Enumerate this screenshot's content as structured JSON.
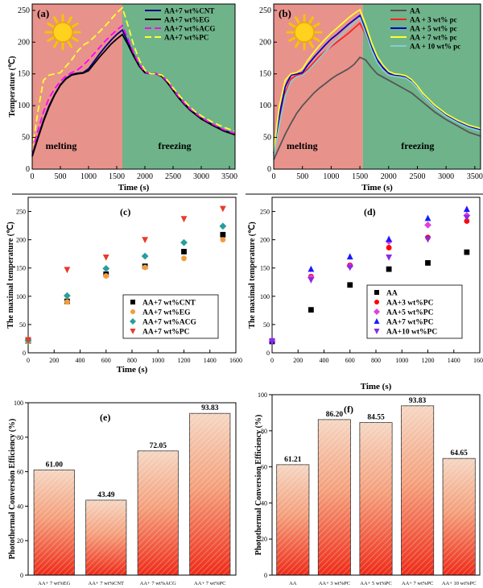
{
  "chart_data": [
    {
      "panel": "(a)",
      "type": "line",
      "xlabel": "Time (s)",
      "ylabel": "Temperature (℃)",
      "xlim": [
        0,
        3600
      ],
      "ylim": [
        0,
        260
      ],
      "xticks": [
        0,
        500,
        1000,
        1500,
        2000,
        2500,
        3000,
        3500
      ],
      "yticks": [
        0,
        50,
        100,
        150,
        200,
        250
      ],
      "regions": [
        {
          "label": "melting",
          "x0": 0,
          "x1": 1600,
          "color": "#e8928c"
        },
        {
          "label": "freezing",
          "x0": 1600,
          "x1": 3600,
          "color": "#6fb38a"
        }
      ],
      "legend_position": "top-right",
      "series": [
        {
          "name": "AA+7 wt%CNT",
          "color": "#000080",
          "dash": "",
          "x": [
            0,
            100,
            200,
            300,
            400,
            500,
            600,
            700,
            800,
            900,
            1000,
            1100,
            1200,
            1300,
            1400,
            1500,
            1600,
            1700,
            1800,
            1900,
            2000,
            2100,
            2200,
            2300,
            2400,
            2500,
            2600,
            2700,
            2800,
            2900,
            3000,
            3200,
            3400,
            3600
          ],
          "y": [
            22,
            50,
            77,
            100,
            118,
            133,
            143,
            149,
            151,
            152,
            158,
            170,
            182,
            193,
            203,
            212,
            219,
            200,
            180,
            163,
            152,
            150,
            150,
            147,
            137,
            125,
            113,
            103,
            94,
            87,
            80,
            70,
            61,
            55
          ]
        },
        {
          "name": "AA+7 wt%EG",
          "color": "#000000",
          "dash": "",
          "x": [
            0,
            100,
            200,
            300,
            400,
            500,
            600,
            700,
            800,
            900,
            1000,
            1100,
            1200,
            1300,
            1400,
            1500,
            1600,
            1700,
            1800,
            1900,
            2000,
            2100,
            2200,
            2300,
            2400,
            2500,
            2600,
            2700,
            2800,
            2900,
            3000,
            3200,
            3400,
            3600
          ],
          "y": [
            20,
            48,
            75,
            98,
            117,
            132,
            142,
            148,
            150,
            151,
            155,
            166,
            177,
            187,
            197,
            205,
            212,
            196,
            178,
            162,
            152,
            150,
            150,
            146,
            136,
            124,
            112,
            102,
            93,
            86,
            79,
            69,
            60,
            54
          ]
        },
        {
          "name": "AA+7 wt%ACG",
          "color": "#ff00ff",
          "dash": "8,4",
          "x": [
            0,
            100,
            200,
            300,
            400,
            500,
            600,
            700,
            800,
            900,
            1000,
            1100,
            1200,
            1300,
            1400,
            1500,
            1600,
            1700,
            1800,
            1900,
            2000,
            2100,
            2200,
            2300,
            2400,
            2500,
            2600,
            2700,
            2800,
            2900,
            3000,
            3200,
            3400,
            3600
          ],
          "y": [
            28,
            60,
            90,
            112,
            127,
            138,
            147,
            152,
            156,
            163,
            172,
            182,
            192,
            202,
            211,
            219,
            226,
            205,
            183,
            165,
            153,
            150,
            150,
            147,
            138,
            126,
            114,
            104,
            95,
            88,
            81,
            71,
            62,
            56
          ]
        },
        {
          "name": "AA+7 wt%PC",
          "color": "#ffff33",
          "dash": "8,4",
          "x": [
            0,
            100,
            200,
            300,
            400,
            500,
            600,
            700,
            800,
            900,
            1000,
            1100,
            1200,
            1300,
            1400,
            1500,
            1600,
            1700,
            1800,
            1900,
            2000,
            2100,
            2200,
            2300,
            2400,
            2500,
            2600,
            2700,
            2800,
            2900,
            3000,
            3200,
            3400,
            3600
          ],
          "y": [
            30,
            90,
            140,
            148,
            150,
            152,
            162,
            172,
            185,
            195,
            200,
            208,
            217,
            226,
            236,
            246,
            254,
            226,
            196,
            172,
            156,
            150,
            150,
            148,
            140,
            128,
            117,
            107,
            98,
            90,
            84,
            74,
            66,
            60
          ]
        }
      ]
    },
    {
      "panel": "(b)",
      "type": "line",
      "xlabel": "Time (s)",
      "ylabel": "",
      "xlim": [
        0,
        3600
      ],
      "ylim": [
        0,
        260
      ],
      "xticks": [
        0,
        500,
        1000,
        1500,
        2000,
        2500,
        3000,
        3500
      ],
      "yticks": [
        0,
        50,
        100,
        150,
        200,
        250
      ],
      "regions": [
        {
          "label": "melting",
          "x0": 0,
          "x1": 1550,
          "color": "#e8928c"
        },
        {
          "label": "freezing",
          "x0": 1550,
          "x1": 3600,
          "color": "#6fb38a"
        }
      ],
      "legend_position": "top-right",
      "series": [
        {
          "name": "AA",
          "color": "#555555",
          "dash": "",
          "x": [
            0,
            100,
            200,
            300,
            400,
            500,
            600,
            700,
            800,
            900,
            1000,
            1100,
            1200,
            1300,
            1400,
            1500,
            1600,
            1700,
            1800,
            1900,
            2000,
            2200,
            2400,
            2600,
            2800,
            3000,
            3200,
            3400,
            3600
          ],
          "y": [
            15,
            35,
            55,
            72,
            88,
            100,
            110,
            120,
            128,
            135,
            142,
            148,
            153,
            158,
            165,
            176,
            172,
            160,
            150,
            145,
            140,
            130,
            120,
            105,
            90,
            78,
            68,
            58,
            52
          ]
        },
        {
          "name": "AA + 3 wt% pc",
          "color": "#ff2020",
          "dash": "",
          "x": [
            0,
            100,
            200,
            300,
            400,
            500,
            600,
            700,
            800,
            900,
            1000,
            1100,
            1200,
            1300,
            1400,
            1500,
            1600,
            1700,
            1800,
            1900,
            2000,
            2100,
            2200,
            2300,
            2400,
            2500,
            2600,
            2800,
            3000,
            3200,
            3400,
            3600
          ],
          "y": [
            22,
            75,
            120,
            142,
            148,
            150,
            158,
            168,
            178,
            186,
            193,
            200,
            207,
            214,
            222,
            230,
            212,
            188,
            170,
            158,
            150,
            148,
            147,
            146,
            140,
            130,
            118,
            100,
            86,
            76,
            68,
            63
          ]
        },
        {
          "name": "AA + 5 wt% pc",
          "color": "#0000cc",
          "dash": "",
          "x": [
            0,
            100,
            200,
            300,
            400,
            500,
            600,
            700,
            800,
            900,
            1000,
            1100,
            1200,
            1300,
            1400,
            1500,
            1600,
            1700,
            1800,
            1900,
            2000,
            2100,
            2200,
            2300,
            2400,
            2500,
            2600,
            2800,
            3000,
            3200,
            3400,
            3600
          ],
          "y": [
            25,
            85,
            130,
            148,
            150,
            152,
            165,
            176,
            186,
            196,
            205,
            212,
            220,
            228,
            235,
            242,
            218,
            192,
            172,
            160,
            151,
            148,
            147,
            145,
            139,
            129,
            117,
            99,
            85,
            75,
            67,
            62
          ]
        },
        {
          "name": "AA + 7 wt% pc",
          "color": "#ffff33",
          "dash": "",
          "x": [
            0,
            100,
            200,
            300,
            400,
            500,
            600,
            700,
            800,
            900,
            1000,
            1100,
            1200,
            1300,
            1400,
            1500,
            1600,
            1700,
            1800,
            1900,
            2000,
            2100,
            2200,
            2300,
            2400,
            2500,
            2600,
            2800,
            3000,
            3200,
            3400,
            3600
          ],
          "y": [
            28,
            100,
            140,
            150,
            152,
            158,
            172,
            184,
            195,
            205,
            214,
            222,
            230,
            238,
            245,
            251,
            228,
            200,
            178,
            164,
            154,
            150,
            149,
            147,
            141,
            131,
            119,
            101,
            87,
            77,
            69,
            64
          ]
        },
        {
          "name": "AA + 10 wt% pc",
          "color": "#88cccc",
          "dash": "",
          "x": [
            0,
            100,
            200,
            300,
            400,
            500,
            600,
            700,
            800,
            900,
            1000,
            1100,
            1200,
            1300,
            1400,
            1500,
            1600,
            1700,
            1800,
            1900,
            2000,
            2100,
            2200,
            2300,
            2400,
            2500,
            2600,
            2800,
            3000,
            3200,
            3400,
            3600
          ],
          "y": [
            20,
            70,
            115,
            138,
            145,
            148,
            155,
            165,
            175,
            185,
            195,
            204,
            213,
            222,
            230,
            238,
            214,
            188,
            168,
            156,
            148,
            146,
            145,
            143,
            137,
            127,
            115,
            97,
            83,
            73,
            65,
            60
          ]
        }
      ]
    },
    {
      "panel": "(c)",
      "type": "scatter",
      "xlabel": "Time (s)",
      "ylabel": "The maximal temperature (℃)",
      "xlim": [
        0,
        1600
      ],
      "ylim": [
        0,
        275
      ],
      "xticks": [
        0,
        200,
        400,
        600,
        800,
        1000,
        1200,
        1400,
        1600
      ],
      "yticks": [
        0,
        50,
        100,
        150,
        200,
        250
      ],
      "legend_position": "lower-right",
      "series": [
        {
          "name": "AA+7 wt%CNT",
          "color": "#000000",
          "marker": "square",
          "x": [
            0,
            300,
            600,
            900,
            1200,
            1500
          ],
          "y": [
            21,
            91,
            139,
            153,
            179,
            209
          ]
        },
        {
          "name": "AA+7 wt%EG",
          "color": "#f39c3c",
          "marker": "circle",
          "x": [
            0,
            300,
            600,
            900,
            1200,
            1500
          ],
          "y": [
            20,
            90,
            136,
            151,
            167,
            200
          ]
        },
        {
          "name": "AA+7 wt%ACG",
          "color": "#2a9d9d",
          "marker": "diamond",
          "x": [
            0,
            300,
            600,
            900,
            1200,
            1500
          ],
          "y": [
            22,
            101,
            149,
            171,
            195,
            224
          ]
        },
        {
          "name": "AA+7 wt%PC",
          "color": "#e83a2a",
          "marker": "triangle-down",
          "x": [
            0,
            300,
            600,
            900,
            1200,
            1500
          ],
          "y": [
            23,
            147,
            169,
            200,
            237,
            255
          ]
        }
      ]
    },
    {
      "panel": "(d)",
      "type": "scatter",
      "xlabel": "Time (s)",
      "ylabel": "The maximal temperature (℃)",
      "xlim": [
        0,
        1600
      ],
      "ylim": [
        0,
        275
      ],
      "xticks": [
        0,
        200,
        400,
        600,
        800,
        1000,
        1200,
        1400,
        1600
      ],
      "yticks": [
        0,
        50,
        100,
        150,
        200,
        250
      ],
      "legend_position": "lower-right",
      "series": [
        {
          "name": "AA",
          "color": "#000000",
          "marker": "square",
          "x": [
            0,
            300,
            600,
            900,
            1200,
            1500
          ],
          "y": [
            20,
            76,
            120,
            148,
            159,
            178
          ]
        },
        {
          "name": "AA+3 wt%PC",
          "color": "#ff0000",
          "marker": "circle",
          "x": [
            0,
            300,
            600,
            900,
            1200,
            1500
          ],
          "y": [
            21,
            135,
            155,
            186,
            204,
            233
          ]
        },
        {
          "name": "AA+5 wt%PC",
          "color": "#e040e0",
          "marker": "diamond",
          "x": [
            0,
            300,
            600,
            900,
            1200,
            1500
          ],
          "y": [
            21,
            133,
            153,
            197,
            226,
            243
          ]
        },
        {
          "name": "AA+7 wt%PC",
          "color": "#1a1aff",
          "marker": "triangle-up",
          "x": [
            0,
            300,
            600,
            900,
            1200,
            1500
          ],
          "y": [
            22,
            148,
            170,
            201,
            238,
            254
          ]
        },
        {
          "name": "AA+10 wt%PC",
          "color": "#8a2be2",
          "marker": "triangle-down",
          "x": [
            0,
            300,
            600,
            900,
            1200,
            1500
          ],
          "y": [
            21,
            129,
            151,
            169,
            201,
            239
          ]
        }
      ]
    },
    {
      "panel": "(e)",
      "type": "bar",
      "ylabel": "Photothermal Conversion Efficiency (%)",
      "ylim": [
        0,
        100
      ],
      "yticks": [
        0,
        20,
        40,
        60,
        80,
        100
      ],
      "categories": [
        "AA+ 7 wt%EG",
        "AA+ 7 wt%CNT",
        "AA+ 7 wt%ACG",
        "AA+ 7 wt%PC"
      ],
      "values": [
        61.0,
        43.49,
        72.05,
        93.83
      ],
      "value_labels": [
        "61.00",
        "43.49",
        "72.05",
        "93.83"
      ]
    },
    {
      "panel": "(f)",
      "type": "bar",
      "ylabel": "Photothermal Conversion Efficiency (%)",
      "ylim": [
        0,
        100
      ],
      "yticks": [
        0,
        20,
        40,
        60,
        80,
        100
      ],
      "categories": [
        "AA",
        "AA+ 3 wt%PC",
        "AA+ 5 wt%PC",
        "AA+ 7 wt%PC",
        "AA+ 10 wt%PC"
      ],
      "values": [
        61.21,
        86.2,
        84.55,
        93.83,
        64.65
      ],
      "value_labels": [
        "61.21",
        "86.20",
        "84.55",
        "93.83",
        "64.65"
      ]
    }
  ]
}
